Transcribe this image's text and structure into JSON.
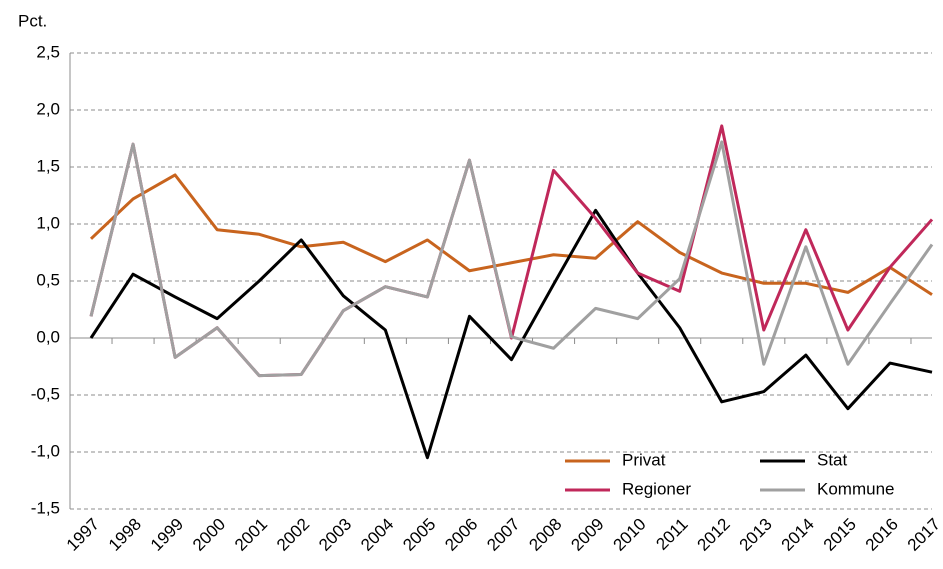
{
  "chart_data": {
    "type": "line",
    "y_axis_label": "Pct.",
    "categories": [
      "1997",
      "1998",
      "1999",
      "2000",
      "2001",
      "2002",
      "2003",
      "2004",
      "2005",
      "2006",
      "2007",
      "2008",
      "2009",
      "2010",
      "2011",
      "2012",
      "2013",
      "2014",
      "2015",
      "2016",
      "2017"
    ],
    "series": [
      {
        "name": "Privat",
        "color": "#c8641e",
        "values": [
          0.87,
          1.22,
          1.43,
          0.95,
          0.91,
          0.8,
          0.84,
          0.67,
          0.86,
          0.59,
          0.66,
          0.73,
          0.7,
          1.02,
          0.75,
          0.57,
          0.48,
          0.48,
          0.4,
          0.62,
          0.38
        ]
      },
      {
        "name": "Stat",
        "color": "#000000",
        "values": [
          0.0,
          0.56,
          0.36,
          0.17,
          0.5,
          0.86,
          0.37,
          0.07,
          -1.05,
          0.19,
          -0.19,
          0.47,
          1.12,
          0.57,
          0.09,
          -0.56,
          -0.47,
          -0.15,
          -0.62,
          -0.22,
          -0.3
        ]
      },
      {
        "name": "Regioner",
        "color": "#c0285a",
        "values": [
          0.19,
          1.7,
          -0.17,
          0.09,
          -0.33,
          -0.32,
          0.24,
          0.45,
          0.36,
          1.56,
          0.0,
          1.47,
          1.05,
          0.57,
          0.41,
          1.86,
          0.07,
          0.95,
          0.07,
          0.62,
          1.04
        ]
      },
      {
        "name": "Kommune",
        "color": "#a0a0a0",
        "values": [
          0.19,
          1.7,
          -0.17,
          0.09,
          -0.33,
          -0.32,
          0.24,
          0.45,
          0.36,
          1.56,
          0.01,
          -0.09,
          0.26,
          0.17,
          0.52,
          1.72,
          -0.23,
          0.8,
          -0.23,
          0.3,
          0.82
        ]
      }
    ],
    "ylim": [
      -1.5,
      2.5
    ],
    "yticks": [
      {
        "value": -1.5,
        "label": "-1,5"
      },
      {
        "value": -1,
        "label": "-1,0"
      },
      {
        "value": -0.5,
        "label": "-0,5"
      },
      {
        "value": 0,
        "label": "0,0"
      },
      {
        "value": 0.5,
        "label": "0,5"
      },
      {
        "value": 1,
        "label": "1,0"
      },
      {
        "value": 1.5,
        "label": "1,5"
      },
      {
        "value": 2,
        "label": "2,0"
      },
      {
        "value": 2.5,
        "label": "2,5"
      }
    ],
    "grid": true
  }
}
